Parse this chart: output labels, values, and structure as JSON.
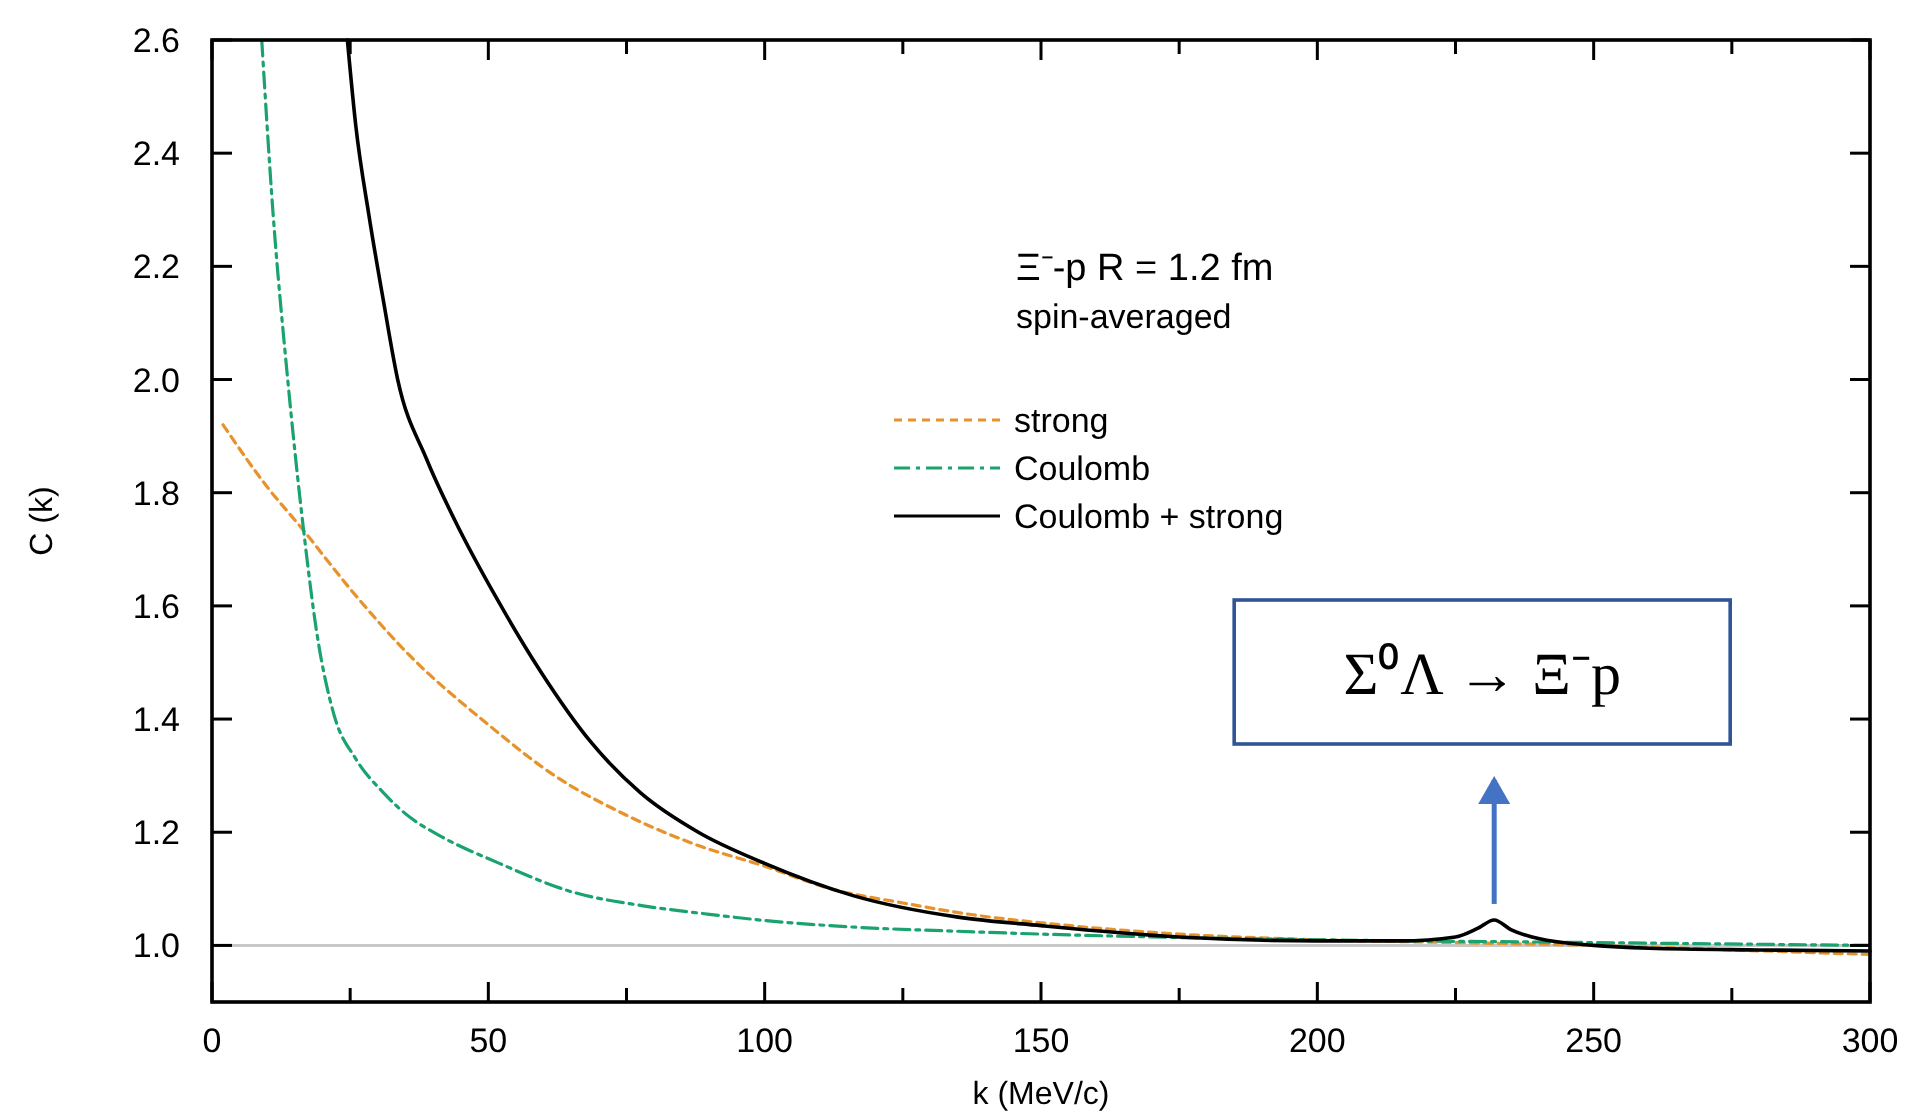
{
  "chart_data": {
    "type": "line",
    "xlabel": "k (MeV/c)",
    "ylabel": "C (k)",
    "xlim": [
      0,
      300
    ],
    "ylim": [
      0.9,
      2.6
    ],
    "xticks": [
      0,
      {
        "value": 25,
        "label": null
      },
      50,
      {
        "value": 75,
        "label": null
      },
      100,
      {
        "value": 125,
        "label": null
      },
      150,
      {
        "value": 175,
        "label": null
      },
      200,
      {
        "value": 225,
        "label": null
      },
      250,
      {
        "value": 275,
        "label": null
      },
      300
    ],
    "yticks": [
      {
        "value": 1,
        "label": "1.0"
      },
      {
        "value": 1.2,
        "label": "1.2"
      },
      {
        "value": 1.4,
        "label": "1.4"
      },
      {
        "value": 1.6,
        "label": "1.6"
      },
      {
        "value": 1.8,
        "label": "1.8"
      },
      {
        "value": 2,
        "label": "2.0"
      },
      {
        "value": 2.2,
        "label": "2.2"
      },
      {
        "value": 2.4,
        "label": "2.4"
      },
      {
        "value": 2.6,
        "label": "2.6"
      }
    ],
    "grid": false,
    "legend": "top",
    "marker": "none",
    "ref_lines": [
      {
        "axis": "y",
        "value": 1,
        "color": "#c8c8c8"
      }
    ],
    "annotations": [
      "Ξ⁻-p    R = 1.2 fm",
      "spin-averaged",
      {
        "text": "Σ⁰Λ → Ξ⁻p",
        "x": 232,
        "y": 1.045
      }
    ],
    "series": [
      {
        "name": "strong",
        "color": "#e8922a",
        "line_style": "dotted",
        "x": [
          2,
          10,
          16,
          25,
          35,
          50,
          62,
          75,
          87,
          100,
          112,
          125,
          137,
          150,
          175,
          200,
          225,
          250,
          275,
          300
        ],
        "values": [
          1.92,
          1.81,
          1.74,
          1.63,
          1.52,
          1.39,
          1.3,
          1.23,
          1.18,
          1.14,
          1.1,
          1.075,
          1.055,
          1.04,
          1.02,
          1.01,
          1.005,
          1.0,
          0.992,
          0.984
        ]
      },
      {
        "name": "Coulomb",
        "color": "#1aa36f",
        "line_style": "dashed",
        "x": [
          9,
          11,
          13.6,
          16.5,
          19,
          22,
          26,
          31,
          36,
          41,
          52,
          65,
          78,
          90,
          100,
          115,
          135,
          150,
          175,
          200,
          250,
          300
        ],
        "values": [
          2.6,
          2.3,
          2.01,
          1.74,
          1.55,
          1.41,
          1.33,
          1.27,
          1.225,
          1.195,
          1.145,
          1.095,
          1.07,
          1.055,
          1.044,
          1.033,
          1.025,
          1.02,
          1.014,
          1.01,
          1.005,
          1.0
        ]
      },
      {
        "name": "Coulomb + strong",
        "color": "#000000",
        "line_style": "solid",
        "x": [
          24.5,
          26,
          28.4,
          31,
          33.6,
          38.8,
          44,
          51.7,
          59.4,
          68.5,
          77.5,
          88,
          100,
          116,
          135,
          150,
          175,
          200,
          215,
          225,
          229,
          232,
          235,
          240,
          250,
          260,
          280,
          300
        ],
        "values": [
          2.6,
          2.45,
          2.29,
          2.14,
          2.0,
          1.86,
          1.75,
          1.61,
          1.485,
          1.36,
          1.27,
          1.2,
          1.145,
          1.088,
          1.05,
          1.035,
          1.015,
          1.008,
          1.008,
          1.015,
          1.03,
          1.045,
          1.028,
          1.012,
          1.0,
          0.995,
          0.992,
          0.99
        ]
      }
    ]
  }
}
